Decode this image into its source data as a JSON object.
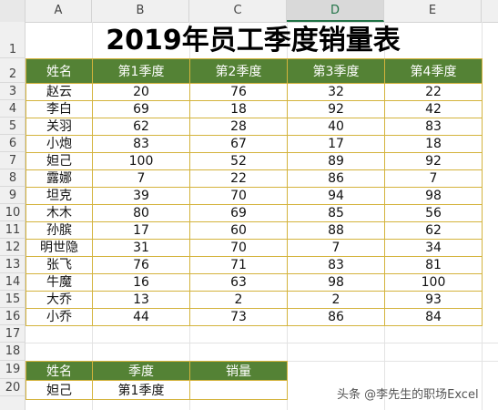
{
  "columns": [
    "A",
    "B",
    "C",
    "D",
    "E"
  ],
  "active_column": "D",
  "rows": [
    "1",
    "2",
    "3",
    "4",
    "5",
    "6",
    "7",
    "8",
    "9",
    "10",
    "11",
    "12",
    "13",
    "14",
    "15",
    "16",
    "17",
    "18",
    "19",
    "20"
  ],
  "title": "2019年员工季度销量表",
  "table": {
    "headers": [
      "姓名",
      "第1季度",
      "第2季度",
      "第3季度",
      "第4季度"
    ],
    "rows": [
      [
        "赵云",
        "20",
        "76",
        "32",
        "22"
      ],
      [
        "李白",
        "69",
        "18",
        "92",
        "42"
      ],
      [
        "关羽",
        "62",
        "28",
        "40",
        "83"
      ],
      [
        "小炮",
        "83",
        "67",
        "17",
        "18"
      ],
      [
        "妲己",
        "100",
        "52",
        "89",
        "92"
      ],
      [
        "露娜",
        "7",
        "22",
        "86",
        "7"
      ],
      [
        "坦克",
        "39",
        "70",
        "94",
        "98"
      ],
      [
        "木木",
        "80",
        "69",
        "85",
        "56"
      ],
      [
        "孙膑",
        "17",
        "60",
        "88",
        "62"
      ],
      [
        "明世隐",
        "31",
        "70",
        "7",
        "34"
      ],
      [
        "张飞",
        "76",
        "71",
        "83",
        "81"
      ],
      [
        "牛魔",
        "16",
        "63",
        "98",
        "100"
      ],
      [
        "大乔",
        "13",
        "2",
        "2",
        "93"
      ],
      [
        "小乔",
        "44",
        "73",
        "86",
        "84"
      ]
    ]
  },
  "lookup": {
    "headers": [
      "姓名",
      "季度",
      "销量"
    ],
    "values": [
      "妲己",
      "第1季度",
      ""
    ]
  },
  "watermark": "头条 @李先生的职场Excel"
}
